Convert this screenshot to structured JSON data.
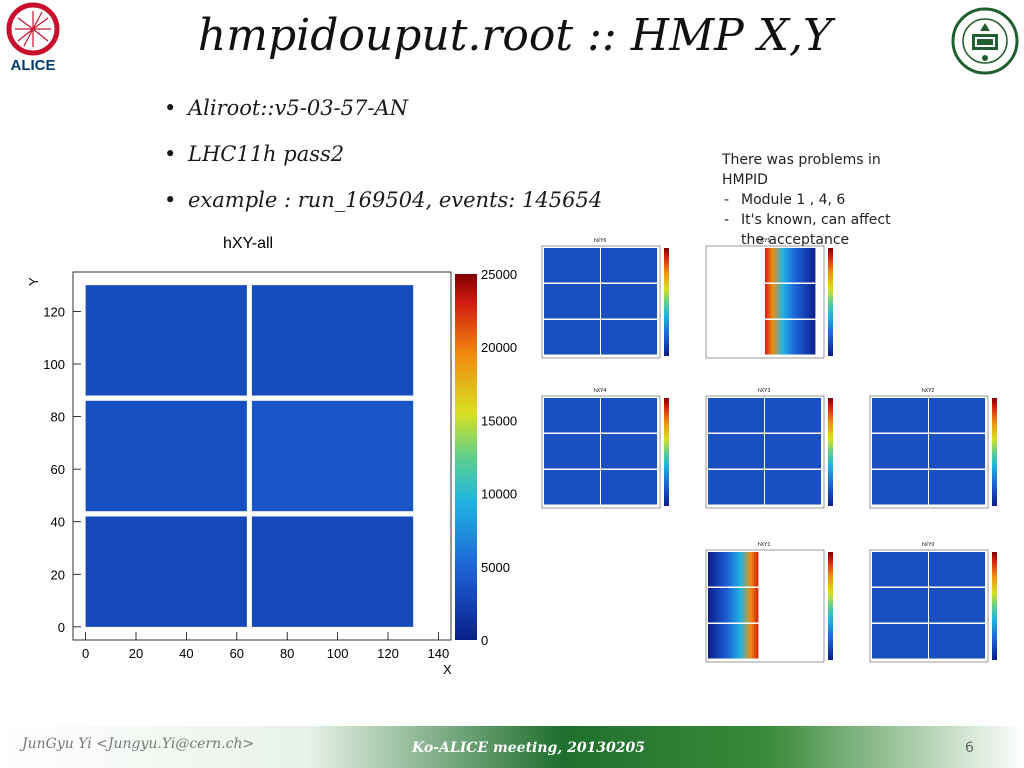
{
  "slide": {
    "title": "hmpidouput.root :: HMP X,Y",
    "logos": {
      "left": "ALICE",
      "right": "PUSAN NATIONAL UNIVERSITY"
    },
    "bullets": [
      "Aliroot::v5-03-57-AN",
      "LHC11h pass2",
      "example : run_169504, events: 145654"
    ],
    "note": {
      "line1": "There was problems in",
      "line2": "HMPID",
      "items": [
        "Module 1 , 4, 6",
        "It's known, can affect",
        "the acceptance"
      ]
    },
    "footer": {
      "author": "JunGyu Yi <Jungyu.Yi@cern.ch>",
      "meeting": "Ko-ALICE meeting, 20130205",
      "page": "6"
    },
    "colors": {
      "accent": "#2e7d32",
      "heat_low": "#0b1e8c",
      "heat_high": "#7f0000"
    }
  },
  "chart_data": [
    {
      "type": "heatmap",
      "title": "hXY-all",
      "xlabel": "X",
      "ylabel": "Y",
      "xlim": [
        -5,
        145
      ],
      "ylim": [
        -5,
        135
      ],
      "x_ticks": [
        "0",
        "20",
        "40",
        "60",
        "80",
        "100",
        "120",
        "140"
      ],
      "y_ticks": [
        "0",
        "20",
        "40",
        "60",
        "80",
        "100",
        "120"
      ],
      "z_range": [
        0,
        25000
      ],
      "z_ticks": [
        "0",
        "5000",
        "10000",
        "15000",
        "20000",
        "25000"
      ],
      "modules": [
        {
          "x": [
            0,
            64
          ],
          "y": [
            0,
            42
          ],
          "level": 0.12
        },
        {
          "x": [
            66,
            130
          ],
          "y": [
            0,
            42
          ],
          "level": 0.12
        },
        {
          "x": [
            0,
            64
          ],
          "y": [
            44,
            86
          ],
          "level": 0.14
        },
        {
          "x": [
            66,
            130
          ],
          "y": [
            44,
            86
          ],
          "level": 0.16
        },
        {
          "x": [
            0,
            64
          ],
          "y": [
            88,
            130
          ],
          "level": 0.13
        },
        {
          "x": [
            66,
            130
          ],
          "y": [
            88,
            130
          ],
          "level": 0.13
        }
      ]
    },
    {
      "type": "heatmap",
      "title": "hXY6",
      "xlim": [
        0,
        144
      ],
      "ylim": [
        0,
        130
      ],
      "z_max": 500
    },
    {
      "type": "heatmap",
      "title": "hXY5",
      "xlim": [
        0,
        144
      ],
      "ylim": [
        0,
        130
      ],
      "z_max": 500
    },
    {
      "type": "heatmap",
      "title": "hXY4",
      "xlim": [
        0,
        144
      ],
      "ylim": [
        0,
        130
      ],
      "z_max": 500
    },
    {
      "type": "heatmap",
      "title": "hXY3",
      "xlim": [
        0,
        144
      ],
      "ylim": [
        0,
        130
      ],
      "z_max": 500
    },
    {
      "type": "heatmap",
      "title": "hXY2",
      "xlim": [
        0,
        144
      ],
      "ylim": [
        0,
        130
      ],
      "z_max": 500
    },
    {
      "type": "heatmap",
      "title": "hXY1",
      "xlim": [
        0,
        144
      ],
      "ylim": [
        0,
        130
      ],
      "z_max": 500
    },
    {
      "type": "heatmap",
      "title": "hXY0",
      "xlim": [
        0,
        144
      ],
      "ylim": [
        0,
        130
      ],
      "z_max": 500
    }
  ]
}
